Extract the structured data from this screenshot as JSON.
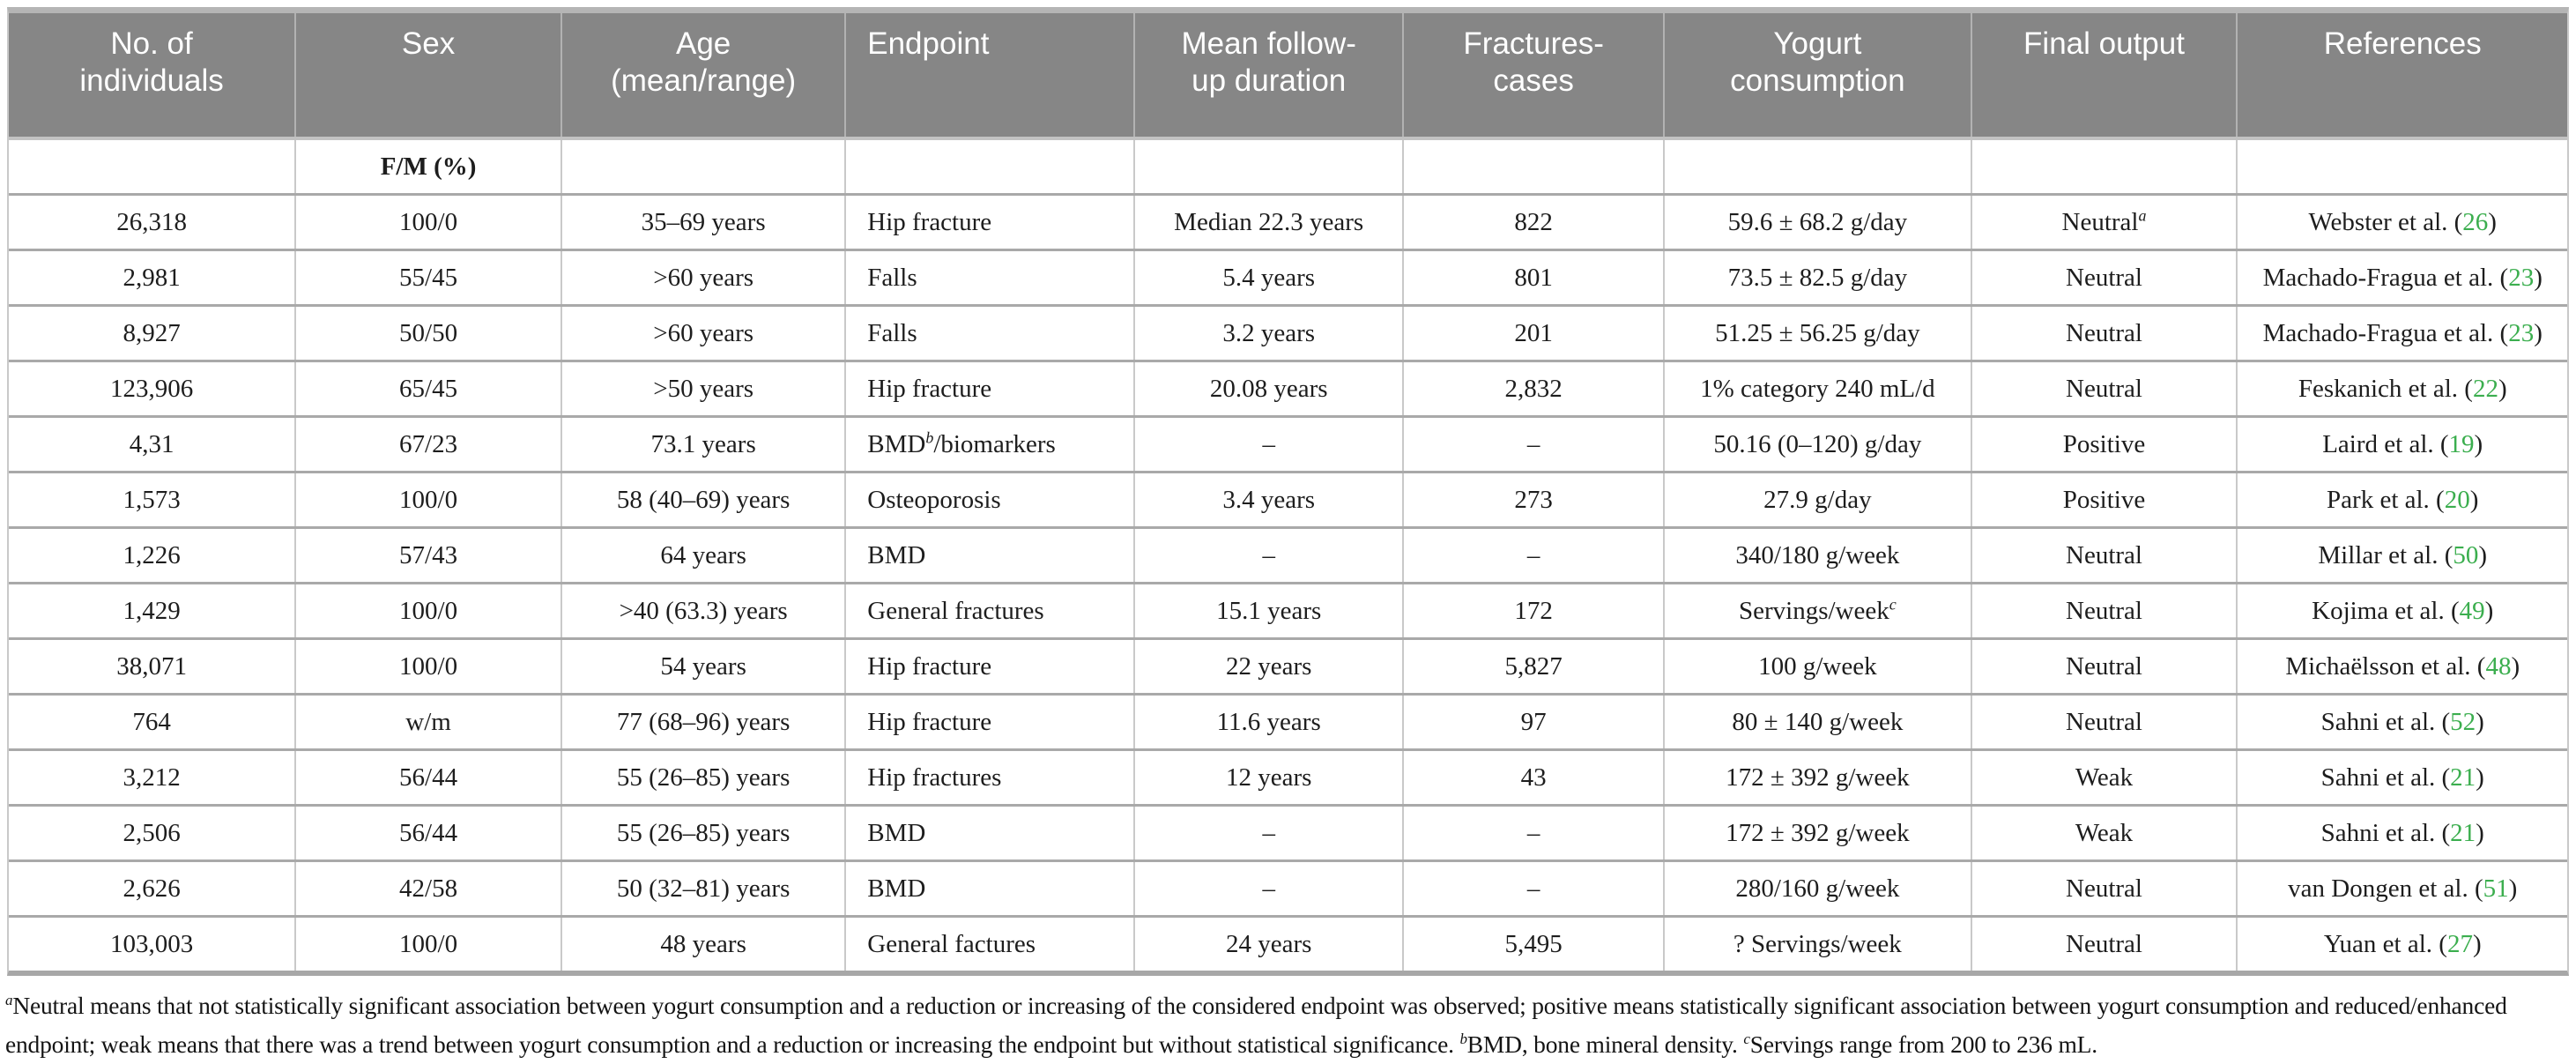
{
  "table": {
    "columns": [
      "No. of individuals",
      "Sex",
      "Age (mean/range)",
      "Endpoint",
      "Mean follow-up duration",
      "Fractures-cases",
      "Yogurt consumption",
      "Final output",
      "References"
    ],
    "subheader": {
      "sex_label": "F/M (%)"
    },
    "rows": [
      {
        "cells": [
          "26,318",
          "100/0",
          "35–69 years",
          "Hip fracture",
          "Median 22.3 years",
          "822",
          "59.6 ± 68.2 g/day",
          "Neutral^{a}"
        ],
        "reference": {
          "author": "Webster et al.",
          "num": "26",
          "label": "Webster et al. (26)"
        }
      },
      {
        "cells": [
          "2,981",
          "55/45",
          ">60 years",
          "Falls",
          "5.4 years",
          "801",
          "73.5 ± 82.5 g/day",
          "Neutral"
        ],
        "reference": {
          "author": "Machado-Fragua et al.",
          "num": "23",
          "label": "Machado-Fragua et al. (23)"
        }
      },
      {
        "cells": [
          "8,927",
          "50/50",
          ">60 years",
          "Falls",
          "3.2 years",
          "201",
          "51.25 ± 56.25 g/day",
          "Neutral"
        ],
        "reference": {
          "author": "Machado-Fragua et al.",
          "num": "23",
          "label": "Machado-Fragua et al. (23)"
        }
      },
      {
        "cells": [
          "123,906",
          "65/45",
          ">50 years",
          "Hip fracture",
          "20.08 years",
          "2,832",
          "1% category 240 mL/d",
          "Neutral"
        ],
        "reference": {
          "author": "Feskanich et al.",
          "num": "22",
          "label": "Feskanich et al. (22)"
        }
      },
      {
        "cells": [
          "4,31",
          "67/23",
          "73.1 years",
          "BMD^{b}/biomarkers",
          "–",
          "–",
          "50.16 (0–120) g/day",
          "Positive"
        ],
        "reference": {
          "author": "Laird et al.",
          "num": "19",
          "label": "Laird et al. (19)"
        }
      },
      {
        "cells": [
          "1,573",
          "100/0",
          "58 (40–69) years",
          "Osteoporosis",
          "3.4 years",
          "273",
          "27.9 g/day",
          "Positive"
        ],
        "reference": {
          "author": "Park et al.",
          "num": "20",
          "label": "Park et al. (20)"
        }
      },
      {
        "cells": [
          "1,226",
          "57/43",
          "64 years",
          "BMD",
          "–",
          "–",
          "340/180 g/week",
          "Neutral"
        ],
        "reference": {
          "author": "Millar et al.",
          "num": "50",
          "label": "Millar et al. (50)"
        }
      },
      {
        "cells": [
          "1,429",
          "100/0",
          ">40 (63.3) years",
          "General fractures",
          "15.1 years",
          "172",
          "Servings/week^{c}",
          "Neutral"
        ],
        "reference": {
          "author": "Kojima et al.",
          "num": "49",
          "label": "Kojima et al. (49)"
        }
      },
      {
        "cells": [
          "38,071",
          "100/0",
          "54 years",
          "Hip fracture",
          "22 years",
          "5,827",
          "100 g/week",
          "Neutral"
        ],
        "reference": {
          "author": "Michaëlsson et al.",
          "num": "48",
          "label": "Michaëlsson et al. (48)"
        }
      },
      {
        "cells": [
          "764",
          "w/m",
          "77 (68–96) years",
          "Hip fracture",
          "11.6 years",
          "97",
          "80 ± 140 g/week",
          "Neutral"
        ],
        "reference": {
          "author": "Sahni et al.",
          "num": "52",
          "label": "Sahni et al. (52)"
        }
      },
      {
        "cells": [
          "3,212",
          "56/44",
          "55 (26–85) years",
          "Hip fractures",
          "12 years",
          "43",
          "172 ± 392 g/week",
          "Weak"
        ],
        "reference": {
          "author": "Sahni et al.",
          "num": "21",
          "label": "Sahni et al. (21)"
        }
      },
      {
        "cells": [
          "2,506",
          "56/44",
          "55 (26–85) years",
          "BMD",
          "–",
          "–",
          "172 ± 392 g/week",
          "Weak"
        ],
        "reference": {
          "author": "Sahni et al.",
          "num": "21",
          "label": "Sahni et al. (21)"
        }
      },
      {
        "cells": [
          "2,626",
          "42/58",
          "50 (32–81) years",
          "BMD",
          "–",
          "–",
          "280/160 g/week",
          "Neutral"
        ],
        "reference": {
          "author": "van Dongen et al.",
          "num": "51",
          "label": "van Dongen et al. (51)"
        }
      },
      {
        "cells": [
          "103,003",
          "100/0",
          "48 years",
          "General factures",
          "24 years",
          "5,495",
          "? Servings/week",
          "Neutral"
        ],
        "reference": {
          "author": "Yuan et al.",
          "num": "27",
          "label": "Yuan et al. (27)"
        }
      }
    ]
  },
  "footnote": "^{a}Neutral means that not statistically significant association between yogurt consumption and a reduction or increasing of the considered endpoint was observed; positive means statistically significant association between yogurt consumption and reduced/enhanced endpoint; weak means that there was a trend between yogurt consumption and a reduction or increasing the endpoint but without statistical significance. ^{b}BMD, bone mineral density. ^{c}Servings range from 200 to 236 mL.",
  "colors": {
    "header_background": "#868686",
    "header_text": "#ffffff",
    "body_text": "#1d1d1d",
    "reference_green": "#3bae4e",
    "border_gray": "#a9a9a9"
  }
}
